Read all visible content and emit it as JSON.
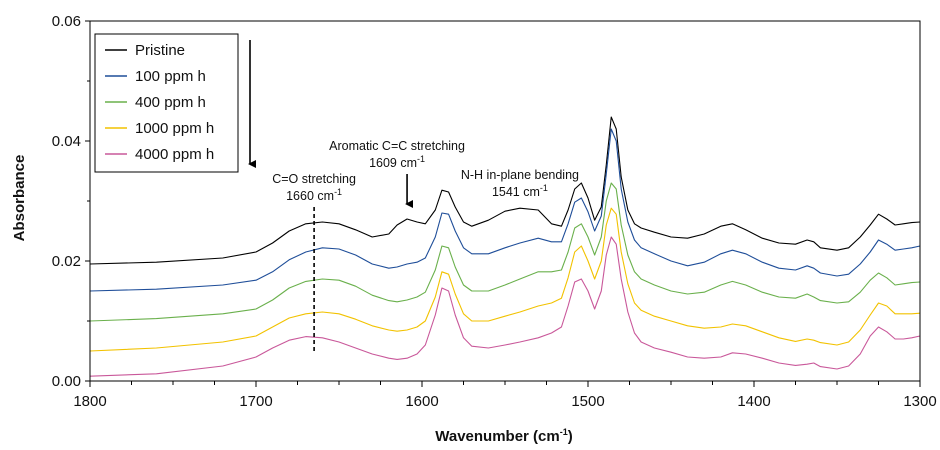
{
  "chart_data": {
    "type": "line",
    "xlabel": "Wavenumber (cm",
    "xlabel_sup": "-1",
    "xlabel_end": ")",
    "ylabel": "Absorbance",
    "xlim": [
      1800,
      1300
    ],
    "ylim": [
      0,
      0.06
    ],
    "x_ticks": [
      1800,
      1700,
      1600,
      1500,
      1400,
      1300
    ],
    "x_tick_labels": [
      "1800",
      "1700",
      "1600",
      "1500",
      "1400",
      "1300"
    ],
    "y_ticks": [
      0,
      0.02,
      0.04,
      0.06
    ],
    "y_tick_labels": [
      "0.00",
      "0.02",
      "0.04",
      "0.06"
    ],
    "legend_position": "top-left",
    "legend_arrow": "down",
    "series": [
      {
        "name": "Pristine",
        "color": "#000000",
        "x": [
          1800,
          1760,
          1720,
          1700,
          1690,
          1680,
          1670,
          1660,
          1650,
          1640,
          1630,
          1620,
          1615,
          1609,
          1603,
          1598,
          1592,
          1588,
          1584,
          1580,
          1575,
          1570,
          1560,
          1550,
          1541,
          1530,
          1522,
          1516,
          1512,
          1508,
          1504,
          1500,
          1496,
          1492,
          1489,
          1486,
          1483,
          1480,
          1476,
          1472,
          1468,
          1460,
          1450,
          1440,
          1430,
          1420,
          1413,
          1405,
          1395,
          1385,
          1375,
          1368,
          1364,
          1360,
          1350,
          1343,
          1336,
          1330,
          1325,
          1320,
          1315,
          1310,
          1305,
          1300
        ],
        "y": [
          0.0195,
          0.0198,
          0.0205,
          0.0215,
          0.023,
          0.025,
          0.0262,
          0.0265,
          0.0262,
          0.0252,
          0.024,
          0.0245,
          0.026,
          0.027,
          0.0265,
          0.0262,
          0.0285,
          0.0318,
          0.0315,
          0.029,
          0.0265,
          0.0258,
          0.0268,
          0.0283,
          0.0288,
          0.0285,
          0.0262,
          0.0258,
          0.0285,
          0.032,
          0.033,
          0.0305,
          0.0268,
          0.029,
          0.036,
          0.044,
          0.042,
          0.034,
          0.0285,
          0.0262,
          0.0255,
          0.0248,
          0.024,
          0.0238,
          0.0245,
          0.0258,
          0.0262,
          0.0252,
          0.0238,
          0.023,
          0.0228,
          0.0235,
          0.0232,
          0.0222,
          0.0218,
          0.0222,
          0.024,
          0.026,
          0.0278,
          0.027,
          0.026,
          0.0262,
          0.0264,
          0.0265
        ]
      },
      {
        "name": "100 ppm h",
        "color": "#1f4e99",
        "x": [
          1800,
          1760,
          1720,
          1700,
          1690,
          1680,
          1670,
          1660,
          1650,
          1640,
          1630,
          1620,
          1615,
          1609,
          1603,
          1598,
          1592,
          1588,
          1584,
          1580,
          1575,
          1570,
          1560,
          1550,
          1541,
          1530,
          1522,
          1516,
          1512,
          1508,
          1504,
          1500,
          1496,
          1492,
          1489,
          1486,
          1483,
          1480,
          1476,
          1472,
          1468,
          1460,
          1450,
          1440,
          1430,
          1420,
          1413,
          1405,
          1395,
          1385,
          1375,
          1368,
          1364,
          1360,
          1350,
          1343,
          1336,
          1330,
          1325,
          1320,
          1315,
          1310,
          1305,
          1300
        ],
        "y": [
          0.015,
          0.0153,
          0.016,
          0.0168,
          0.0182,
          0.0202,
          0.0215,
          0.0222,
          0.022,
          0.021,
          0.0195,
          0.0188,
          0.019,
          0.0195,
          0.0198,
          0.0205,
          0.024,
          0.028,
          0.0278,
          0.025,
          0.0222,
          0.0212,
          0.0212,
          0.0222,
          0.023,
          0.0238,
          0.0232,
          0.0232,
          0.0262,
          0.0298,
          0.0305,
          0.0282,
          0.025,
          0.0275,
          0.0345,
          0.042,
          0.04,
          0.032,
          0.0265,
          0.0235,
          0.0222,
          0.0212,
          0.02,
          0.0192,
          0.0198,
          0.0212,
          0.0218,
          0.0212,
          0.0198,
          0.0188,
          0.0185,
          0.0192,
          0.0188,
          0.018,
          0.0175,
          0.0178,
          0.0195,
          0.0215,
          0.0235,
          0.0228,
          0.0218,
          0.022,
          0.0222,
          0.0225
        ]
      },
      {
        "name": "400 ppm h",
        "color": "#6ab04c",
        "x": [
          1800,
          1760,
          1720,
          1700,
          1690,
          1680,
          1670,
          1660,
          1650,
          1640,
          1630,
          1620,
          1615,
          1609,
          1603,
          1598,
          1592,
          1588,
          1584,
          1580,
          1575,
          1570,
          1560,
          1550,
          1541,
          1530,
          1522,
          1516,
          1512,
          1508,
          1504,
          1500,
          1496,
          1492,
          1489,
          1486,
          1483,
          1480,
          1476,
          1472,
          1468,
          1460,
          1450,
          1440,
          1430,
          1420,
          1413,
          1405,
          1395,
          1385,
          1375,
          1368,
          1364,
          1360,
          1350,
          1343,
          1336,
          1330,
          1325,
          1320,
          1315,
          1310,
          1305,
          1300
        ],
        "y": [
          0.01,
          0.0104,
          0.0112,
          0.012,
          0.0135,
          0.0155,
          0.0166,
          0.017,
          0.0168,
          0.0158,
          0.0143,
          0.0134,
          0.0132,
          0.0135,
          0.014,
          0.0148,
          0.0185,
          0.0225,
          0.0222,
          0.019,
          0.016,
          0.015,
          0.015,
          0.016,
          0.017,
          0.0182,
          0.0182,
          0.0185,
          0.0215,
          0.0255,
          0.0262,
          0.024,
          0.021,
          0.024,
          0.03,
          0.033,
          0.032,
          0.026,
          0.021,
          0.0182,
          0.017,
          0.016,
          0.015,
          0.0145,
          0.0148,
          0.016,
          0.0166,
          0.016,
          0.0148,
          0.014,
          0.0138,
          0.0145,
          0.014,
          0.0134,
          0.013,
          0.0132,
          0.0148,
          0.0168,
          0.018,
          0.0172,
          0.016,
          0.0162,
          0.0164,
          0.0165
        ]
      },
      {
        "name": "1000 ppm h",
        "color": "#f2c200",
        "x": [
          1800,
          1760,
          1720,
          1700,
          1690,
          1680,
          1670,
          1660,
          1650,
          1640,
          1630,
          1620,
          1615,
          1609,
          1603,
          1598,
          1592,
          1588,
          1584,
          1580,
          1575,
          1570,
          1560,
          1550,
          1541,
          1530,
          1522,
          1516,
          1512,
          1508,
          1504,
          1500,
          1496,
          1492,
          1489,
          1486,
          1483,
          1480,
          1476,
          1472,
          1468,
          1460,
          1450,
          1440,
          1430,
          1420,
          1413,
          1405,
          1395,
          1385,
          1375,
          1368,
          1364,
          1360,
          1350,
          1343,
          1336,
          1330,
          1325,
          1320,
          1315,
          1310,
          1305,
          1300
        ],
        "y": [
          0.005,
          0.0055,
          0.0065,
          0.0075,
          0.009,
          0.0105,
          0.0112,
          0.0115,
          0.0112,
          0.0103,
          0.0092,
          0.0085,
          0.0083,
          0.0085,
          0.009,
          0.01,
          0.014,
          0.0182,
          0.0178,
          0.0145,
          0.0112,
          0.01,
          0.01,
          0.0108,
          0.0115,
          0.0125,
          0.013,
          0.0138,
          0.0172,
          0.0215,
          0.0225,
          0.02,
          0.017,
          0.02,
          0.026,
          0.0288,
          0.0278,
          0.0215,
          0.0162,
          0.013,
          0.0118,
          0.0108,
          0.01,
          0.0092,
          0.0088,
          0.009,
          0.0095,
          0.0092,
          0.0082,
          0.0072,
          0.0066,
          0.007,
          0.0068,
          0.0064,
          0.006,
          0.0065,
          0.0085,
          0.011,
          0.013,
          0.0125,
          0.0112,
          0.0112,
          0.0112,
          0.0113
        ]
      },
      {
        "name": "4000 ppm h",
        "color": "#c9589a",
        "x": [
          1800,
          1760,
          1720,
          1700,
          1690,
          1680,
          1670,
          1660,
          1650,
          1640,
          1630,
          1620,
          1615,
          1609,
          1603,
          1598,
          1592,
          1588,
          1584,
          1580,
          1575,
          1570,
          1560,
          1550,
          1541,
          1530,
          1522,
          1516,
          1512,
          1508,
          1504,
          1500,
          1496,
          1492,
          1489,
          1486,
          1483,
          1480,
          1476,
          1472,
          1468,
          1460,
          1450,
          1440,
          1430,
          1420,
          1413,
          1405,
          1395,
          1385,
          1375,
          1368,
          1364,
          1360,
          1350,
          1343,
          1336,
          1330,
          1325,
          1320,
          1315,
          1310,
          1305,
          1300
        ],
        "y": [
          0.0008,
          0.0012,
          0.0025,
          0.004,
          0.0055,
          0.0068,
          0.0074,
          0.0072,
          0.0065,
          0.0055,
          0.0045,
          0.0038,
          0.0036,
          0.0038,
          0.0045,
          0.006,
          0.011,
          0.0155,
          0.015,
          0.011,
          0.0072,
          0.0058,
          0.0055,
          0.006,
          0.0065,
          0.0072,
          0.008,
          0.009,
          0.0125,
          0.0165,
          0.017,
          0.015,
          0.012,
          0.015,
          0.021,
          0.024,
          0.0228,
          0.017,
          0.0115,
          0.008,
          0.0065,
          0.0055,
          0.0048,
          0.004,
          0.0038,
          0.004,
          0.0047,
          0.0045,
          0.0038,
          0.003,
          0.0026,
          0.0028,
          0.003,
          0.0024,
          0.002,
          0.0025,
          0.0045,
          0.0075,
          0.009,
          0.0082,
          0.007,
          0.007,
          0.0072,
          0.0075
        ]
      }
    ],
    "annotations": [
      {
        "id": "co",
        "lines": [
          "C=O stretching",
          "1660 cm"
        ],
        "sup": "-1",
        "x": 1665,
        "marker": "dashed-vline",
        "y_from": 0.0045,
        "y_to": 0.029
      },
      {
        "id": "aromatic",
        "lines": [
          "Aromatic C=C stretching",
          "1609 cm"
        ],
        "sup": "-1",
        "x": 1609,
        "marker": "arrow-down",
        "y_from": 0.0345,
        "y_to": 0.0285
      },
      {
        "id": "nh",
        "lines": [
          "N-H in-plane bending",
          "1541 cm"
        ],
        "sup": "-1",
        "x": 1541,
        "marker": "none"
      }
    ]
  }
}
